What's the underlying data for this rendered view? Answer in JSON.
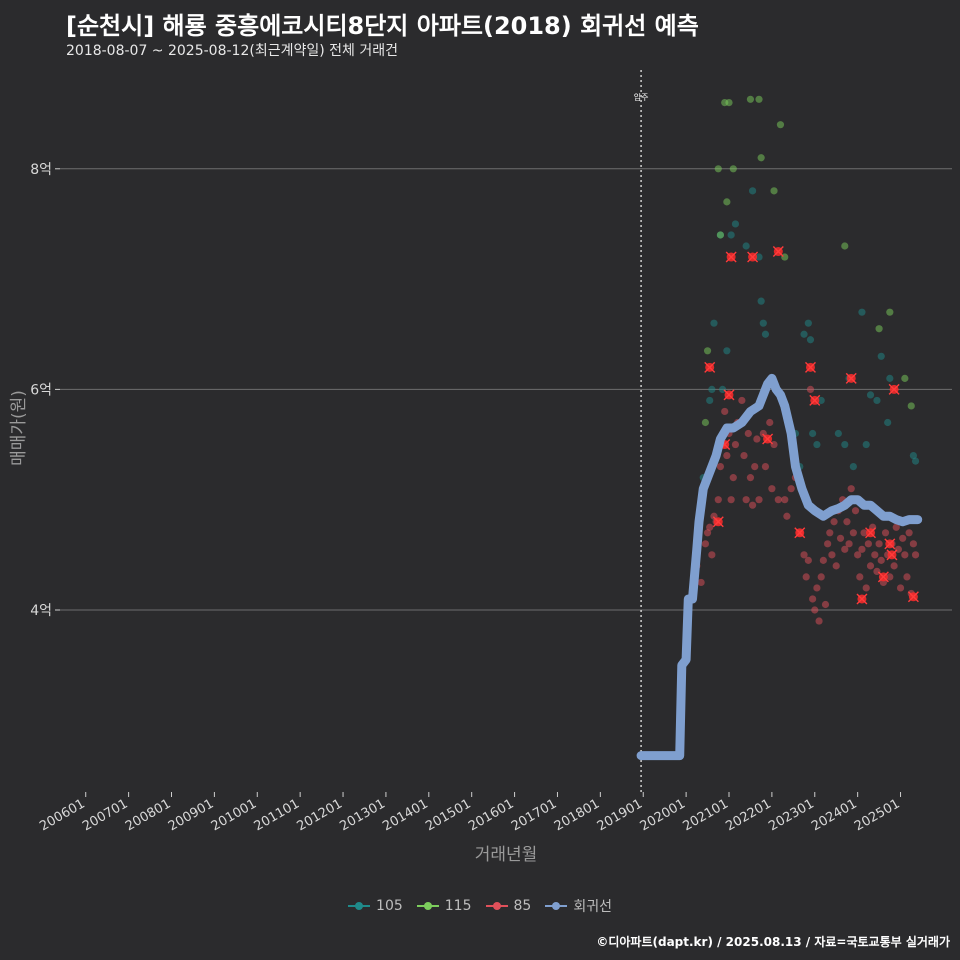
{
  "chart_data": {
    "type": "scatter",
    "title": "[순천시] 해룡 중흥에코시티8단지 아파트(2018) 회귀선 예측",
    "subtitle": "2018-08-07 ~ 2025-08-12(최근계약일) 전체 거래건",
    "caption": "©디아파트(dapt.kr) / 2025.08.13 / 자료=국토교통부 실거래가",
    "xlabel": "거래년월",
    "ylabel": "매매가(원)",
    "xlim": [
      2005.4,
      2026.2
    ],
    "ylim": [
      2.35,
      8.95
    ],
    "y_ticks": [
      {
        "value": 4,
        "label": "4억"
      },
      {
        "value": 6,
        "label": "6억"
      },
      {
        "value": 8,
        "label": "8억"
      }
    ],
    "x_ticks": [
      {
        "value": 2006,
        "label": "200601"
      },
      {
        "value": 2007,
        "label": "200701"
      },
      {
        "value": 2008,
        "label": "200801"
      },
      {
        "value": 2009,
        "label": "200901"
      },
      {
        "value": 2010,
        "label": "201001"
      },
      {
        "value": 2011,
        "label": "201101"
      },
      {
        "value": 2012,
        "label": "201201"
      },
      {
        "value": 2013,
        "label": "201301"
      },
      {
        "value": 2014,
        "label": "201401"
      },
      {
        "value": 2015,
        "label": "201501"
      },
      {
        "value": 2016,
        "label": "201601"
      },
      {
        "value": 2017,
        "label": "201701"
      },
      {
        "value": 2018,
        "label": "201801"
      },
      {
        "value": 2019,
        "label": "201901"
      },
      {
        "value": 2020,
        "label": "202001"
      },
      {
        "value": 2021,
        "label": "202101"
      },
      {
        "value": 2022,
        "label": "202201"
      },
      {
        "value": 2023,
        "label": "202301"
      },
      {
        "value": 2024,
        "label": "202401"
      },
      {
        "value": 2025,
        "label": "202501"
      }
    ],
    "annotation": {
      "label": "입주",
      "x": 2018.95
    },
    "legend": [
      {
        "name": "105",
        "color": "#1f8a8a"
      },
      {
        "name": "115",
        "color": "#7ccd5c"
      },
      {
        "name": "85",
        "color": "#e0505a"
      },
      {
        "name": "회귀선",
        "color": "#7f9fcf"
      }
    ],
    "series": [
      {
        "name": "105",
        "color": "#1f8a8a",
        "points": [
          [
            2020.4,
            5.2
          ],
          [
            2020.55,
            5.9
          ],
          [
            2020.6,
            6.0
          ],
          [
            2020.65,
            6.6
          ],
          [
            2020.8,
            7.4
          ],
          [
            2020.85,
            6.0
          ],
          [
            2020.95,
            6.35
          ],
          [
            2021.05,
            7.4
          ],
          [
            2021.15,
            7.5
          ],
          [
            2021.4,
            7.3
          ],
          [
            2021.55,
            7.8
          ],
          [
            2021.7,
            7.2
          ],
          [
            2021.75,
            6.8
          ],
          [
            2021.8,
            6.6
          ],
          [
            2021.85,
            6.5
          ],
          [
            2022.55,
            5.6
          ],
          [
            2022.65,
            5.3
          ],
          [
            2022.75,
            6.5
          ],
          [
            2022.85,
            6.6
          ],
          [
            2022.9,
            6.45
          ],
          [
            2022.95,
            5.6
          ],
          [
            2023.05,
            5.5
          ],
          [
            2023.15,
            5.9
          ],
          [
            2023.55,
            5.6
          ],
          [
            2023.7,
            5.5
          ],
          [
            2023.8,
            6.1
          ],
          [
            2023.9,
            5.3
          ],
          [
            2024.1,
            6.7
          ],
          [
            2024.2,
            5.5
          ],
          [
            2024.3,
            5.95
          ],
          [
            2024.45,
            5.9
          ],
          [
            2024.55,
            6.3
          ],
          [
            2024.7,
            5.7
          ],
          [
            2024.75,
            6.1
          ],
          [
            2025.3,
            5.4
          ],
          [
            2025.35,
            5.35
          ]
        ]
      },
      {
        "name": "115",
        "color": "#7ccd5c",
        "points": [
          [
            2020.45,
            5.7
          ],
          [
            2020.5,
            6.35
          ],
          [
            2020.75,
            8.0
          ],
          [
            2020.8,
            7.4
          ],
          [
            2020.9,
            8.6
          ],
          [
            2020.95,
            7.7
          ],
          [
            2021.0,
            8.6
          ],
          [
            2021.1,
            8.0
          ],
          [
            2021.5,
            8.63
          ],
          [
            2021.7,
            8.63
          ],
          [
            2021.75,
            8.1
          ],
          [
            2022.05,
            7.8
          ],
          [
            2022.2,
            8.4
          ],
          [
            2022.3,
            7.2
          ],
          [
            2023.7,
            7.3
          ],
          [
            2024.5,
            6.55
          ],
          [
            2024.75,
            6.7
          ],
          [
            2025.1,
            6.1
          ],
          [
            2025.25,
            5.85
          ]
        ]
      },
      {
        "name": "85",
        "color": "#e0505a",
        "points": [
          [
            2020.25,
            4.4
          ],
          [
            2020.35,
            4.25
          ],
          [
            2020.45,
            4.6
          ],
          [
            2020.5,
            4.7
          ],
          [
            2020.55,
            4.75
          ],
          [
            2020.6,
            4.5
          ],
          [
            2020.65,
            4.85
          ],
          [
            2020.7,
            4.8
          ],
          [
            2020.75,
            5.0
          ],
          [
            2020.8,
            5.3
          ],
          [
            2020.85,
            5.5
          ],
          [
            2020.9,
            5.8
          ],
          [
            2020.95,
            5.4
          ],
          [
            2021.0,
            5.6
          ],
          [
            2021.05,
            5.0
          ],
          [
            2021.1,
            5.2
          ],
          [
            2021.15,
            5.5
          ],
          [
            2021.2,
            5.7
          ],
          [
            2021.3,
            5.9
          ],
          [
            2021.35,
            5.4
          ],
          [
            2021.4,
            5.0
          ],
          [
            2021.45,
            5.6
          ],
          [
            2021.5,
            5.2
          ],
          [
            2021.55,
            4.95
          ],
          [
            2021.6,
            5.3
          ],
          [
            2021.65,
            5.55
          ],
          [
            2021.7,
            5.0
          ],
          [
            2021.8,
            5.6
          ],
          [
            2021.85,
            5.3
          ],
          [
            2021.95,
            5.7
          ],
          [
            2022.0,
            5.1
          ],
          [
            2022.05,
            5.5
          ],
          [
            2022.15,
            5.0
          ],
          [
            2022.3,
            5.0
          ],
          [
            2022.35,
            4.85
          ],
          [
            2022.45,
            5.1
          ],
          [
            2022.55,
            5.2
          ],
          [
            2022.65,
            4.7
          ],
          [
            2022.75,
            4.5
          ],
          [
            2022.8,
            4.3
          ],
          [
            2022.85,
            4.45
          ],
          [
            2022.9,
            6.0
          ],
          [
            2022.95,
            4.1
          ],
          [
            2023.0,
            4.0
          ],
          [
            2023.05,
            4.2
          ],
          [
            2023.1,
            3.9
          ],
          [
            2023.15,
            4.3
          ],
          [
            2023.2,
            4.45
          ],
          [
            2023.25,
            4.05
          ],
          [
            2023.3,
            4.6
          ],
          [
            2023.35,
            4.7
          ],
          [
            2023.4,
            4.5
          ],
          [
            2023.45,
            4.8
          ],
          [
            2023.5,
            4.4
          ],
          [
            2023.55,
            4.9
          ],
          [
            2023.6,
            4.65
          ],
          [
            2023.65,
            5.0
          ],
          [
            2023.7,
            4.55
          ],
          [
            2023.75,
            4.8
          ],
          [
            2023.8,
            4.6
          ],
          [
            2023.85,
            5.1
          ],
          [
            2023.9,
            4.7
          ],
          [
            2023.95,
            4.9
          ],
          [
            2024.0,
            4.5
          ],
          [
            2024.05,
            4.3
          ],
          [
            2024.1,
            4.55
          ],
          [
            2024.15,
            4.7
          ],
          [
            2024.2,
            4.2
          ],
          [
            2024.25,
            4.6
          ],
          [
            2024.3,
            4.4
          ],
          [
            2024.35,
            4.75
          ],
          [
            2024.4,
            4.5
          ],
          [
            2024.45,
            4.35
          ],
          [
            2024.5,
            4.6
          ],
          [
            2024.55,
            4.45
          ],
          [
            2024.6,
            4.25
          ],
          [
            2024.65,
            4.7
          ],
          [
            2024.7,
            4.5
          ],
          [
            2024.75,
            4.3
          ],
          [
            2024.8,
            4.6
          ],
          [
            2024.85,
            4.4
          ],
          [
            2024.9,
            4.75
          ],
          [
            2024.95,
            4.55
          ],
          [
            2025.0,
            4.2
          ],
          [
            2025.05,
            4.65
          ],
          [
            2025.1,
            4.5
          ],
          [
            2025.15,
            4.3
          ],
          [
            2025.2,
            4.7
          ],
          [
            2025.25,
            4.15
          ],
          [
            2025.3,
            4.6
          ],
          [
            2025.35,
            4.5
          ]
        ]
      }
    ],
    "highlighted": [
      [
        2020.55,
        6.2
      ],
      [
        2020.75,
        4.8
      ],
      [
        2020.9,
        5.5
      ],
      [
        2021.0,
        5.95
      ],
      [
        2021.05,
        7.2
      ],
      [
        2021.55,
        7.2
      ],
      [
        2021.9,
        5.55
      ],
      [
        2022.15,
        7.25
      ],
      [
        2022.9,
        6.2
      ],
      [
        2023.0,
        5.9
      ],
      [
        2022.65,
        4.7
      ],
      [
        2023.85,
        6.1
      ],
      [
        2024.1,
        4.1
      ],
      [
        2024.3,
        4.7
      ],
      [
        2024.6,
        4.3
      ],
      [
        2024.75,
        4.6
      ],
      [
        2024.8,
        4.5
      ],
      [
        2024.85,
        6.0
      ],
      [
        2025.3,
        4.12
      ]
    ],
    "regression": [
      [
        2018.95,
        2.68
      ],
      [
        2019.85,
        2.68
      ],
      [
        2019.9,
        3.5
      ],
      [
        2020.0,
        3.55
      ],
      [
        2020.05,
        4.1
      ],
      [
        2020.15,
        4.1
      ],
      [
        2020.25,
        4.55
      ],
      [
        2020.3,
        4.8
      ],
      [
        2020.4,
        5.1
      ],
      [
        2020.5,
        5.2
      ],
      [
        2020.7,
        5.4
      ],
      [
        2020.8,
        5.55
      ],
      [
        2020.95,
        5.65
      ],
      [
        2021.1,
        5.65
      ],
      [
        2021.3,
        5.7
      ],
      [
        2021.5,
        5.8
      ],
      [
        2021.7,
        5.85
      ],
      [
        2021.8,
        5.95
      ],
      [
        2021.9,
        6.05
      ],
      [
        2022.0,
        6.1
      ],
      [
        2022.1,
        6.0
      ],
      [
        2022.2,
        5.95
      ],
      [
        2022.3,
        5.85
      ],
      [
        2022.45,
        5.6
      ],
      [
        2022.55,
        5.3
      ],
      [
        2022.7,
        5.1
      ],
      [
        2022.85,
        4.95
      ],
      [
        2023.0,
        4.9
      ],
      [
        2023.2,
        4.85
      ],
      [
        2023.4,
        4.9
      ],
      [
        2023.55,
        4.92
      ],
      [
        2023.7,
        4.95
      ],
      [
        2023.85,
        5.0
      ],
      [
        2024.0,
        5.0
      ],
      [
        2024.15,
        4.95
      ],
      [
        2024.3,
        4.95
      ],
      [
        2024.45,
        4.9
      ],
      [
        2024.6,
        4.85
      ],
      [
        2024.75,
        4.85
      ],
      [
        2024.9,
        4.82
      ],
      [
        2025.05,
        4.8
      ],
      [
        2025.2,
        4.82
      ],
      [
        2025.4,
        4.82
      ]
    ]
  }
}
